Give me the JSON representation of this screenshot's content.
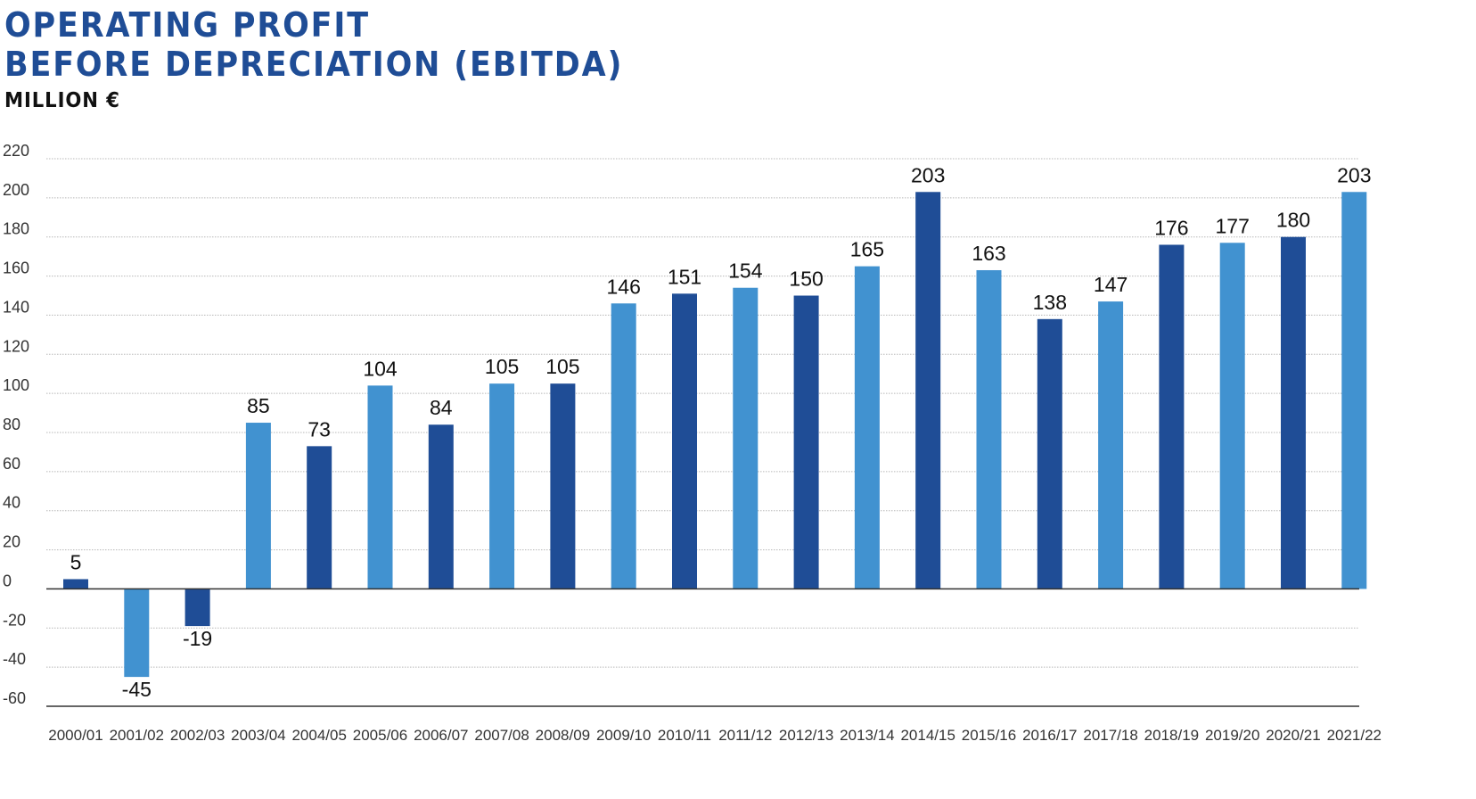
{
  "chart_data": {
    "type": "bar",
    "title_lines": [
      "OPERATING PROFIT",
      "BEFORE DEPRECIATION (EBITDA)"
    ],
    "unit": "MILLION €",
    "categories": [
      "2000/01",
      "2001/02",
      "2002/03",
      "2003/04",
      "2004/05",
      "2005/06",
      "2006/07",
      "2007/08",
      "2008/09",
      "2009/10",
      "2010/11",
      "2011/12",
      "2012/13",
      "2013/14",
      "2014/15",
      "2015/16",
      "2016/17",
      "2017/18",
      "2018/19",
      "2019/20",
      "2020/21",
      "2021/22"
    ],
    "values": [
      5,
      -45,
      -19,
      85,
      73,
      104,
      84,
      105,
      105,
      146,
      151,
      154,
      150,
      165,
      203,
      163,
      138,
      147,
      176,
      177,
      180,
      203
    ],
    "value_labels": [
      "5",
      "-45",
      "-19",
      "85",
      "73",
      "104",
      "84",
      "105",
      "105",
      "146",
      "151",
      "154",
      "150",
      "165",
      "203",
      "163",
      "138",
      "147",
      "176",
      "177",
      "180",
      "203"
    ],
    "ylim": [
      -60,
      220
    ],
    "yticks": [
      220,
      200,
      180,
      160,
      140,
      120,
      100,
      80,
      60,
      40,
      20,
      0,
      -20,
      -40,
      -60
    ],
    "ytick_labels": [
      "220",
      "200",
      "180",
      "160",
      "140",
      "120",
      "100",
      "80",
      "60",
      "40",
      "20",
      "0",
      "-20",
      "-40",
      "-60"
    ],
    "bar_color_pattern": [
      "#1f4d96",
      "#4192d0"
    ],
    "gridlines": true,
    "legend": "none"
  },
  "colors": {
    "title": "#1f4d96",
    "dark_bar": "#1f4d96",
    "light_bar": "#4192d0",
    "grid": "#b8b8b8",
    "axis": "#333333"
  }
}
